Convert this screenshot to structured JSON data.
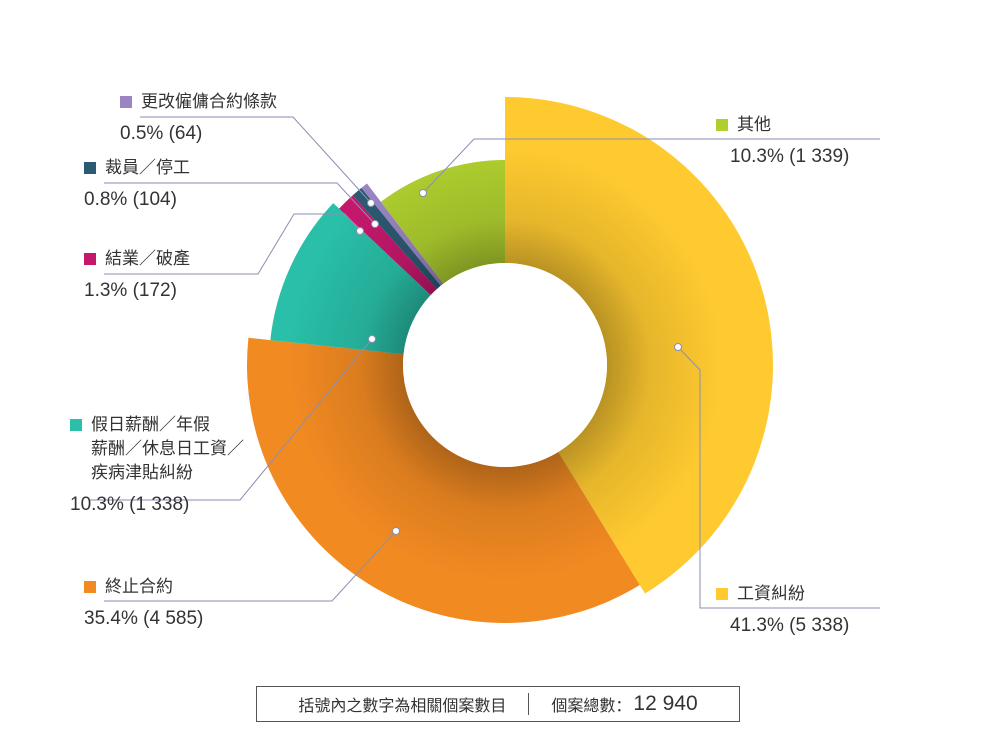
{
  "chart_data": {
    "type": "pie",
    "variant": "donut-exploded",
    "slices": [
      {
        "key": "wages",
        "label": "工資糾紛",
        "percent_label": "41.3% (5 338)",
        "value": 5338,
        "percent": 41.3,
        "color": "#FFCA30"
      },
      {
        "key": "termination",
        "label": "終止合約",
        "percent_label": "35.4% (4 585)",
        "value": 4585,
        "percent": 35.4,
        "color": "#F28A22"
      },
      {
        "key": "holiday",
        "label": "假日薪酬／年假\n薪酬／休息日工資／\n疾病津貼糾紛",
        "percent_label": "10.3% (1 338)",
        "value": 1338,
        "percent": 10.3,
        "color": "#29BFA8"
      },
      {
        "key": "closure",
        "label": "結業／破產",
        "percent_label": "1.3% (172)",
        "value": 172,
        "percent": 1.3,
        "color": "#C5186D"
      },
      {
        "key": "layoff",
        "label": "裁員／停工",
        "percent_label": "0.8% (104)",
        "value": 104,
        "percent": 0.8,
        "color": "#2C5A72"
      },
      {
        "key": "contract_change",
        "label": "更改僱傭合約條款",
        "percent_label": "0.5% (64)",
        "value": 64,
        "percent": 0.5,
        "color": "#9B84C4"
      },
      {
        "key": "others",
        "label": "其他",
        "percent_label": "10.3% (1 339)",
        "value": 1339,
        "percent": 10.3,
        "color": "#AFCF2F"
      }
    ]
  },
  "footer": {
    "note": "括號內之數字為相關個案數目",
    "total_label": "個案總數：",
    "total_value": "12 940"
  }
}
